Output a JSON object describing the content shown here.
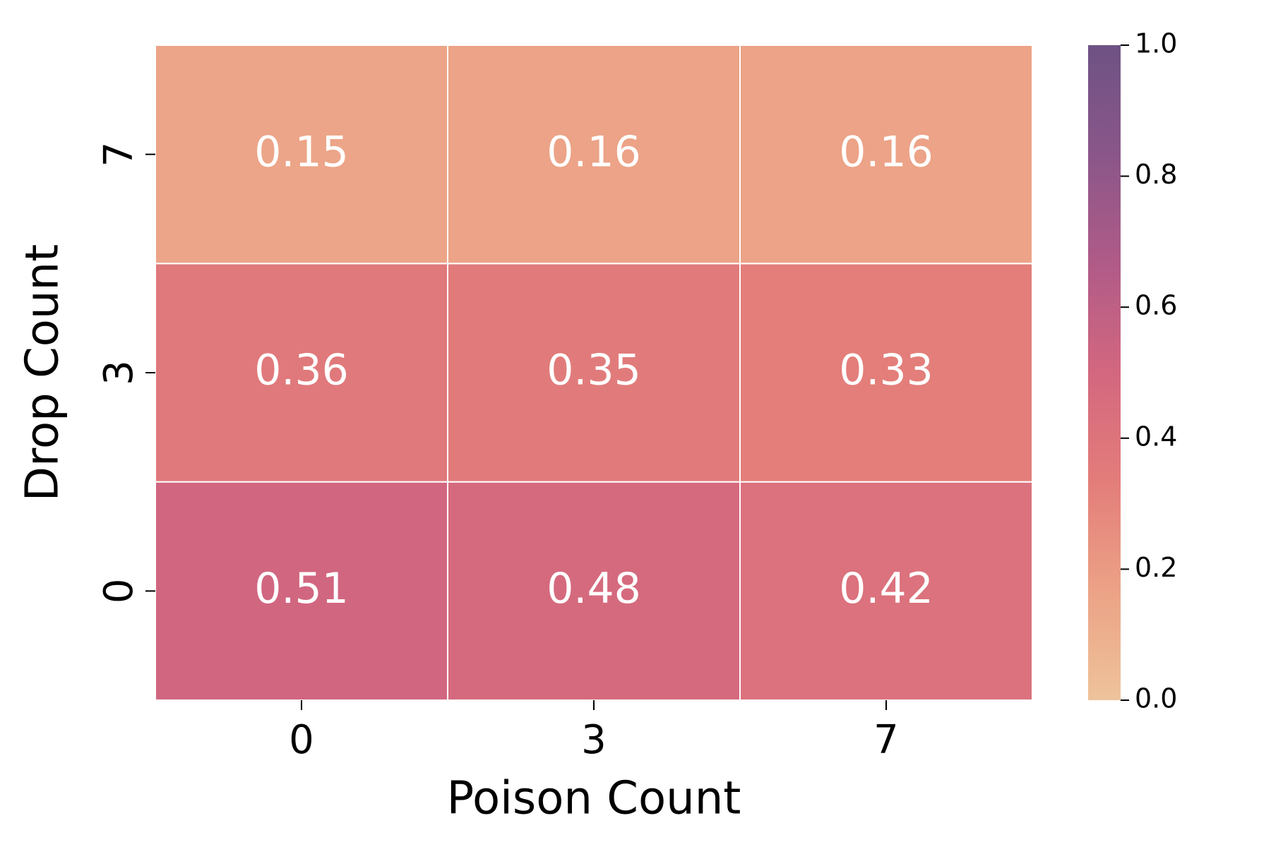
{
  "chart_data": {
    "type": "heatmap",
    "x_label": "Poison Count",
    "y_label": "Drop Count",
    "x_categories": [
      "0",
      "3",
      "7"
    ],
    "y_categories": [
      "0",
      "3",
      "7"
    ],
    "values": [
      [
        0.51,
        0.48,
        0.42
      ],
      [
        0.36,
        0.35,
        0.33
      ],
      [
        0.15,
        0.16,
        0.16
      ]
    ],
    "clim": [
      0,
      1
    ],
    "cticks": [
      {
        "value": 0,
        "label": "0.0"
      },
      0.2,
      0.4,
      0.6,
      0.8,
      {
        "value": 1,
        "label": "1.0"
      }
    ],
    "colormap": [
      "#eec39b",
      "#eca286",
      "#e37d7a",
      "#d3677f",
      "#b05b88",
      "#8a5689",
      "#6e5284"
    ]
  }
}
